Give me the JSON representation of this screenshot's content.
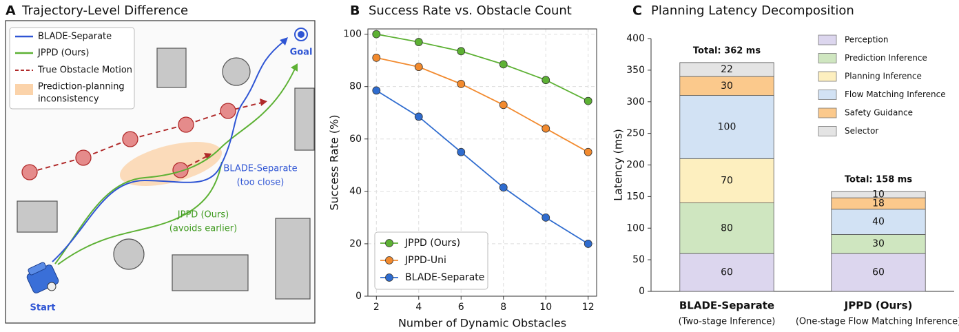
{
  "panel_a": {
    "panel_label": "A",
    "title": "Trajectory-Level Difference",
    "legend": [
      "BLADE-Separate",
      "JPPD (Ours)",
      "True Obstacle Motion",
      "Prediction-planning",
      "inconsistency"
    ],
    "goal": "Goal",
    "start": "Start",
    "blade_note": [
      "BLADE-Separate",
      "(too close)"
    ],
    "jppd_note": [
      "JPPD (Ours)",
      "(avoids earlier)"
    ]
  },
  "chart_data": [
    {
      "type": "line",
      "panel_label": "B",
      "title": "Success Rate vs. Obstacle Count",
      "x_label": "Number of Dynamic Obstacles",
      "y_label": "Success Rate (%)",
      "x": [
        2,
        4,
        6,
        8,
        10,
        12
      ],
      "series": [
        {
          "name": "JPPD (Ours)",
          "color": "#5db134",
          "values": [
            100,
            97,
            93.5,
            88.5,
            82.5,
            74.5
          ]
        },
        {
          "name": "JPPD-Uni",
          "color": "#f28a2e",
          "values": [
            91,
            87.5,
            81,
            73,
            64,
            55
          ]
        },
        {
          "name": "BLADE-Separate",
          "color": "#2f6ccf",
          "values": [
            78.5,
            68.5,
            55,
            41.5,
            30,
            20
          ]
        }
      ],
      "xlim": [
        1.6,
        12.4
      ],
      "xticks": [
        2,
        4,
        6,
        8,
        10,
        12
      ],
      "ylim": [
        0,
        102
      ],
      "yticks": [
        0,
        20,
        40,
        60,
        80,
        100
      ],
      "grid": true,
      "legend": "lower left"
    },
    {
      "type": "bar",
      "stacked": true,
      "panel_label": "C",
      "title": "Planning Latency Decomposition",
      "y_label": "Latency (ms)",
      "categories": [
        "BLADE-Separate",
        "JPPD (Ours)"
      ],
      "category_notes": [
        "(Two-stage Inference)",
        "(One-stage Flow Matching Inference)"
      ],
      "total_labels": [
        "Total: 362 ms",
        "Total: 158 ms"
      ],
      "series": [
        {
          "name": "Perception",
          "color": "#dcd6ee",
          "values": [
            60,
            60
          ]
        },
        {
          "name": "Prediction Inference",
          "color": "#cfe6c0",
          "values": [
            80,
            30
          ]
        },
        {
          "name": "Planning Inference",
          "color": "#fdefbf",
          "values": [
            70,
            null
          ]
        },
        {
          "name": "Flow Matching Inference",
          "color": "#d2e2f4",
          "values": [
            100,
            40
          ]
        },
        {
          "name": "Safety Guidance",
          "color": "#fbc98c",
          "values": [
            30,
            18
          ]
        },
        {
          "name": "Selector",
          "color": "#e4e4e4",
          "values": [
            22,
            10
          ]
        }
      ],
      "ylim": [
        0,
        400
      ],
      "yticks": [
        0,
        50,
        100,
        150,
        200,
        250,
        300,
        350,
        400
      ],
      "grid": false,
      "legend": "upper right"
    }
  ]
}
